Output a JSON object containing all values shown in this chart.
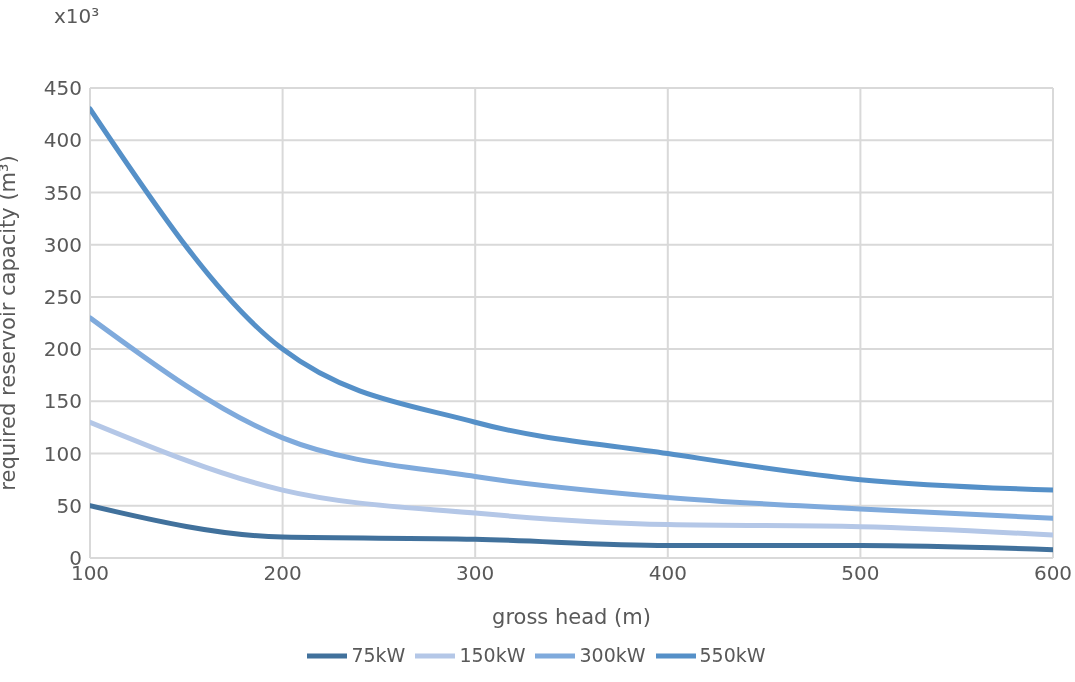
{
  "chart_data": {
    "type": "line",
    "xlabel": "gross head (m)",
    "ylabel": "required reservoir capacity (m³)",
    "annotations": [
      "x10³"
    ],
    "x": [
      100,
      200,
      300,
      400,
      500,
      600
    ],
    "series": [
      {
        "name": "75kW",
        "color": "#41719c",
        "values": [
          50,
          20,
          18,
          12,
          12,
          8
        ]
      },
      {
        "name": "150kW",
        "color": "#b4c7e7",
        "values": [
          130,
          65,
          43,
          32,
          30,
          22
        ]
      },
      {
        "name": "300kW",
        "color": "#7faadc",
        "values": [
          230,
          115,
          78,
          58,
          47,
          38
        ]
      },
      {
        "name": "550kW",
        "color": "#5590c8",
        "values": [
          430,
          200,
          130,
          100,
          75,
          65
        ]
      }
    ],
    "xlim": [
      100,
      600
    ],
    "xticks": [
      100,
      200,
      300,
      400,
      500,
      600
    ],
    "ylim": [
      0,
      450
    ],
    "yticks": [
      0,
      50,
      100,
      150,
      200,
      250,
      300,
      350,
      400,
      450
    ],
    "grid": true,
    "legend": "bottom",
    "marker": "none",
    "line_style": "solid"
  }
}
